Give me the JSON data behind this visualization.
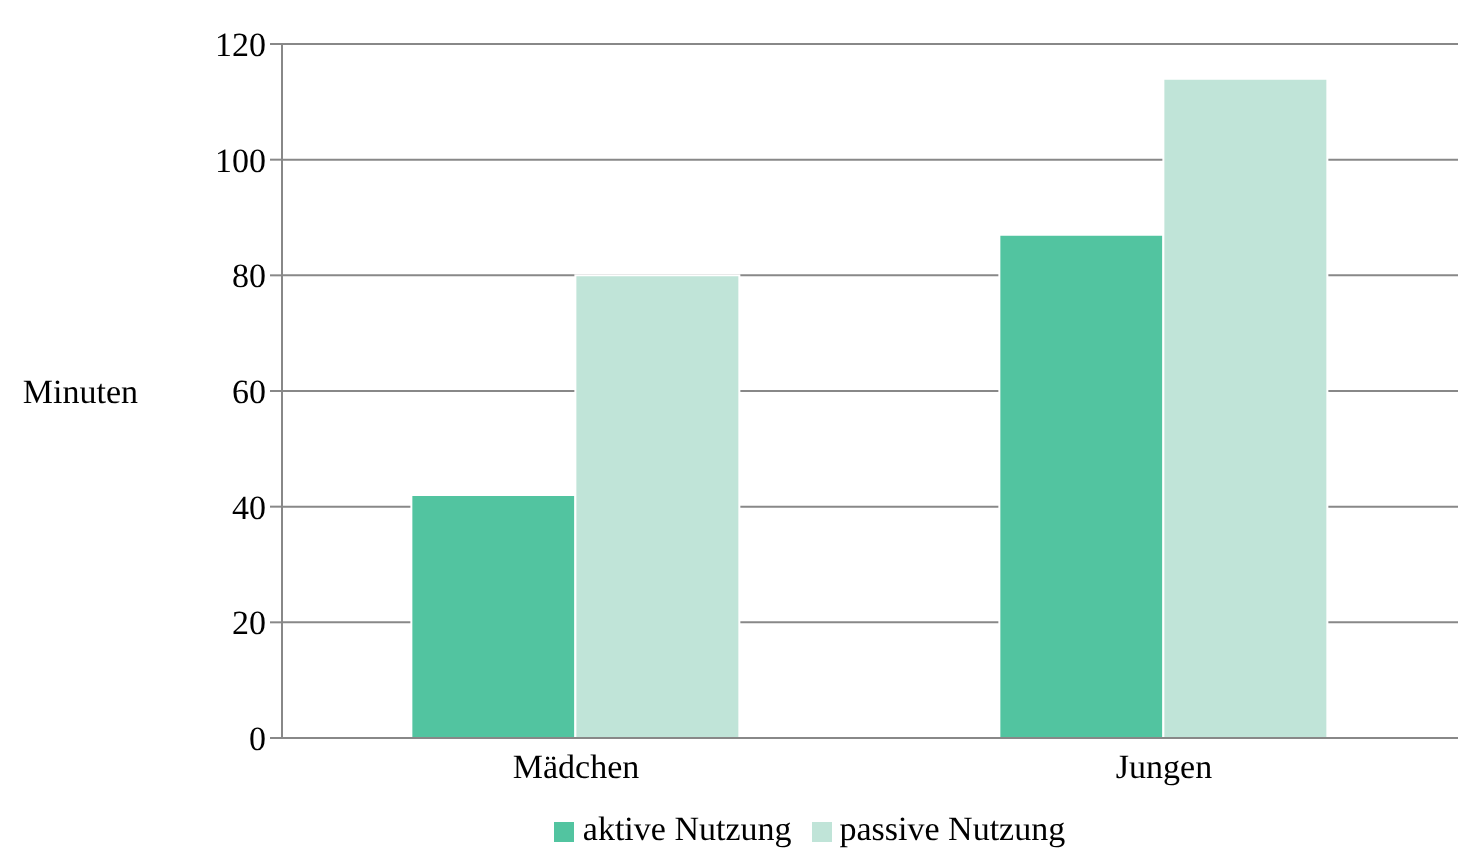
{
  "chart_data": {
    "type": "bar",
    "ylabel": "Minuten",
    "categories": [
      "Mädchen",
      "Jungen"
    ],
    "series": [
      {
        "name": "aktive Nutzung",
        "color": "#52c4a0",
        "values": [
          42,
          87
        ]
      },
      {
        "name": "passive Nutzung",
        "color": "#c0e4d8",
        "values": [
          80,
          114
        ]
      }
    ],
    "ylim": [
      0,
      120
    ],
    "yticks": [
      0,
      20,
      40,
      60,
      80,
      100,
      120
    ],
    "grid": "y",
    "legend": "bottom"
  }
}
